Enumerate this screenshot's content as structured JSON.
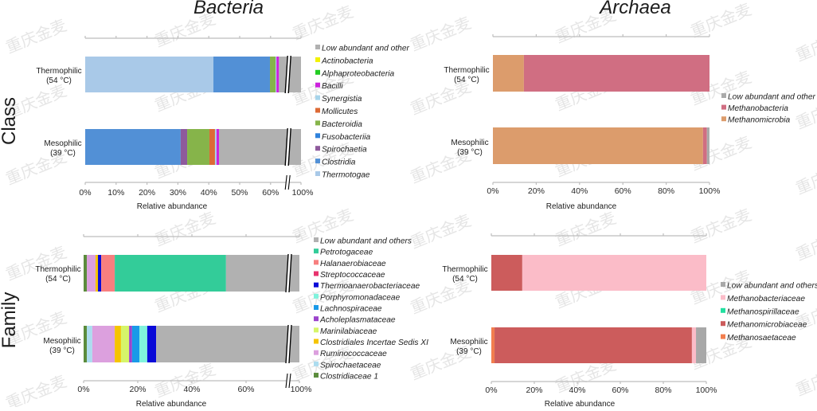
{
  "figure": {
    "watermark": "重庆金麦"
  },
  "chart_data": [
    {
      "type": "bar",
      "orientation": "horizontal",
      "stacked": true,
      "title": "Bacteria",
      "rank": "Class",
      "categories": [
        [
          "Thermophilic",
          "(54 °C)"
        ],
        [
          "Mesophilic",
          "(39 °C)"
        ]
      ],
      "xlabel": "Relative abundance",
      "ylabel": "",
      "xlim": [
        0,
        100
      ],
      "xticks": [
        0,
        10,
        20,
        30,
        40,
        50,
        60,
        100
      ],
      "xtick_labels": [
        "0%",
        "10%",
        "20%",
        "30%",
        "40%",
        "50%",
        "60%",
        "100%"
      ],
      "axis_break_at": 65,
      "grid": false,
      "legend": "right",
      "series": [
        {
          "name": "Low abundant and other",
          "color": "#b1b1b1",
          "values": [
            37.3,
            56.7
          ]
        },
        {
          "name": "Actinobacteria",
          "color": "#f2f200",
          "values": [
            0,
            0
          ]
        },
        {
          "name": "Alphaproteobacteria",
          "color": "#22cc22",
          "values": [
            0,
            0
          ]
        },
        {
          "name": "Bacilli",
          "color": "#cc22dd",
          "values": [
            0.8,
            0.8
          ]
        },
        {
          "name": "Synergistia",
          "color": "#a6d4ea",
          "values": [
            0.3,
            0.5
          ]
        },
        {
          "name": "Mollicutes",
          "color": "#dd6a35",
          "values": [
            0,
            1.8
          ]
        },
        {
          "name": "Bacteroidia",
          "color": "#86b44a",
          "values": [
            1.8,
            7.2
          ]
        },
        {
          "name": "Fusobacteriia",
          "color": "#2f82dc",
          "values": [
            0,
            0
          ]
        },
        {
          "name": "Spirochaetia",
          "color": "#8e5a9c",
          "values": [
            0,
            2.1
          ]
        },
        {
          "name": "Clostridia",
          "color": "#5290d6",
          "values": [
            18.3,
            30.9
          ]
        },
        {
          "name": "Thermotogae",
          "color": "#a9c9e8",
          "values": [
            41.5,
            0
          ]
        }
      ]
    },
    {
      "type": "bar",
      "orientation": "horizontal",
      "stacked": true,
      "title": "Archaea",
      "rank": "Class",
      "categories": [
        [
          "Thermophilic",
          "(54 °C)"
        ],
        [
          "Mesophilic",
          "(39 °C)"
        ]
      ],
      "xlabel": "Relative abundance",
      "ylabel": "",
      "xlim": [
        0,
        100
      ],
      "xticks": [
        0,
        20,
        40,
        60,
        80,
        100
      ],
      "xtick_labels": [
        "0%",
        "20%",
        "40%",
        "60%",
        "80%",
        "100%"
      ],
      "axis_break_at": null,
      "grid": false,
      "legend": "right",
      "series": [
        {
          "name": "Low abundant and other",
          "color": "#aaaaaa",
          "values": [
            0,
            1.2
          ]
        },
        {
          "name": "Methanobacteria",
          "color": "#d06e82",
          "values": [
            85.7,
            1.8
          ]
        },
        {
          "name": "Methanomicrobia",
          "color": "#dc9c6c",
          "values": [
            14.3,
            97.0
          ]
        }
      ]
    },
    {
      "type": "bar",
      "orientation": "horizontal",
      "stacked": true,
      "title": "",
      "rank": "Family",
      "categories": [
        [
          "Thermophilic",
          "(54 °C)"
        ],
        [
          "Mesophilic",
          "(39 °C)"
        ]
      ],
      "xlabel": "Relative abundance",
      "ylabel": "",
      "xlim": [
        0,
        100
      ],
      "xticks": [
        0,
        20,
        40,
        60,
        100
      ],
      "xtick_labels": [
        "0%",
        "20%",
        "40%",
        "60%",
        "100%"
      ],
      "axis_break_at": 75,
      "grid": false,
      "legend": "right",
      "series": [
        {
          "name": "Low abundant and others",
          "color": "#b1b1b1",
          "values": [
            47.4,
            73.2
          ]
        },
        {
          "name": "Petrotogaceae",
          "color": "#33cc99",
          "values": [
            41.1,
            0
          ]
        },
        {
          "name": "Halanaerobiaceae",
          "color": "#f77f7f",
          "values": [
            5.0,
            0
          ]
        },
        {
          "name": "Streptococcaceae",
          "color": "#e8336e",
          "values": [
            0,
            0
          ]
        },
        {
          "name": "Thermoanaerobacteriaceae",
          "color": "#0a0ad8",
          "values": [
            1.2,
            3.3
          ]
        },
        {
          "name": "Porphyromonadaceae",
          "color": "#80f2dc",
          "values": [
            0,
            2.9
          ]
        },
        {
          "name": "Lachnospiraceae",
          "color": "#1a9ae8",
          "values": [
            0,
            2.7
          ]
        },
        {
          "name": "Acholeplasmataceae",
          "color": "#9c44cc",
          "values": [
            0,
            1.1
          ]
        },
        {
          "name": "Marinilabiaceae",
          "color": "#d6f56a",
          "values": [
            0,
            3.0
          ]
        },
        {
          "name": "Clostridiales Incertae Sedis XI",
          "color": "#f5c400",
          "values": [
            0.9,
            2.3
          ]
        },
        {
          "name": "Ruminococcaceae",
          "color": "#dca0de",
          "values": [
            3.2,
            8.3
          ]
        },
        {
          "name": "Spirochaetaceae",
          "color": "#acdcef",
          "values": [
            0,
            2.0
          ]
        },
        {
          "name": "Clostridiaceae 1",
          "color": "#5b8c3c",
          "values": [
            1.2,
            1.2
          ]
        }
      ]
    },
    {
      "type": "bar",
      "orientation": "horizontal",
      "stacked": true,
      "title": "",
      "rank": "Family",
      "categories": [
        [
          "Thermophilic",
          "(54 °C)"
        ],
        [
          "Mesophilic",
          "(39 °C)"
        ]
      ],
      "xlabel": "Relative abundance",
      "ylabel": "",
      "xlim": [
        0,
        100
      ],
      "xticks": [
        0,
        20,
        40,
        60,
        80,
        100
      ],
      "xtick_labels": [
        "0%",
        "20%",
        "40%",
        "60%",
        "80%",
        "100%"
      ],
      "axis_break_at": null,
      "grid": false,
      "legend": "right",
      "series": [
        {
          "name": "Low abundant and others",
          "color": "#a8a8a8",
          "values": [
            0,
            4.8
          ]
        },
        {
          "name": "Methanobacteriaceae",
          "color": "#fbbcc8",
          "values": [
            85.6,
            1.9
          ]
        },
        {
          "name": "Methanospirillaceae",
          "color": "#22e0a0",
          "values": [
            0,
            0
          ]
        },
        {
          "name": "Methanomicrobiaceae",
          "color": "#cc5c5c",
          "values": [
            14.4,
            91.8
          ]
        },
        {
          "name": "Methanosaetaceae",
          "color": "#f27e4e",
          "values": [
            0,
            1.5
          ]
        }
      ]
    }
  ]
}
